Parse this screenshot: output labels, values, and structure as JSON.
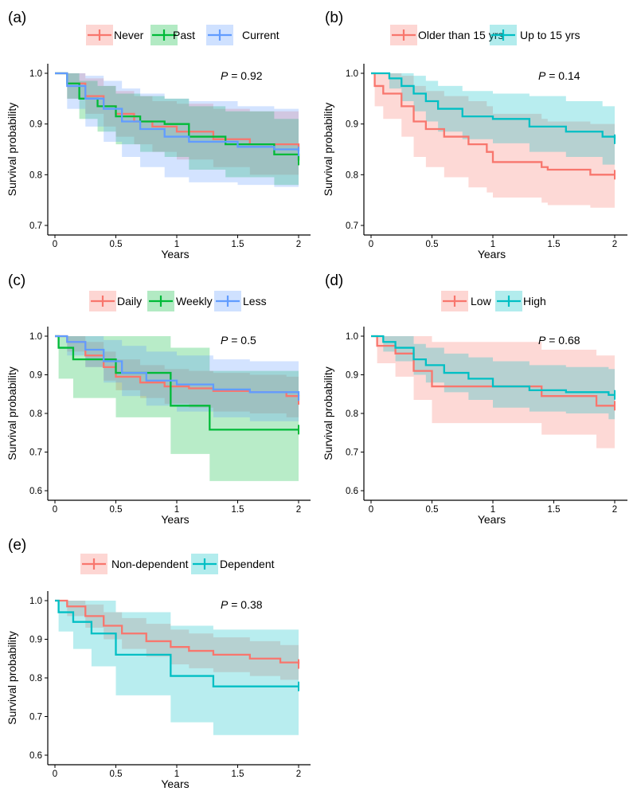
{
  "chart_data": [
    {
      "type": "line",
      "subtype": "kaplan-meier",
      "panel_label": "(a)",
      "xlabel": "Years",
      "ylabel": "Survival probability",
      "xlim": [
        0,
        2
      ],
      "ylim": [
        0.7,
        1.0
      ],
      "xticks": [
        0,
        0.5,
        1,
        1.5,
        2
      ],
      "xtick_labels": [
        "0",
        "0.5",
        "1",
        "1.5",
        "2"
      ],
      "yticks": [
        0.7,
        0.8,
        0.9,
        1.0
      ],
      "ytick_labels": [
        "0.7",
        "0.8",
        "0.9",
        "1.0"
      ],
      "p_label": "P",
      "p_text": " = 0.92",
      "legend_position": "top",
      "series": [
        {
          "name": "Never",
          "color": "#F8766D",
          "x": [
            0,
            0.1,
            0.25,
            0.4,
            0.5,
            0.65,
            0.8,
            1.0,
            1.3,
            1.6,
            2.0
          ],
          "y": [
            1.0,
            0.98,
            0.955,
            0.935,
            0.92,
            0.905,
            0.895,
            0.885,
            0.87,
            0.86,
            0.85
          ],
          "lower": [
            1.0,
            0.95,
            0.92,
            0.895,
            0.875,
            0.86,
            0.845,
            0.83,
            0.815,
            0.8,
            0.79
          ],
          "upper": [
            1.0,
            1.0,
            0.99,
            0.975,
            0.965,
            0.955,
            0.945,
            0.94,
            0.93,
            0.925,
            0.92
          ]
        },
        {
          "name": "Past",
          "color": "#00BA38",
          "x": [
            0,
            0.1,
            0.2,
            0.35,
            0.5,
            0.7,
            0.9,
            1.1,
            1.4,
            1.8,
            2.0
          ],
          "y": [
            1.0,
            0.98,
            0.95,
            0.935,
            0.915,
            0.905,
            0.9,
            0.875,
            0.86,
            0.84,
            0.828
          ],
          "lower": [
            1.0,
            0.95,
            0.91,
            0.885,
            0.86,
            0.845,
            0.835,
            0.81,
            0.795,
            0.78,
            0.775
          ],
          "upper": [
            1.0,
            1.0,
            0.985,
            0.975,
            0.96,
            0.955,
            0.95,
            0.935,
            0.925,
            0.91,
            0.9
          ]
        },
        {
          "name": "Current",
          "color": "#619CFF",
          "x": [
            0,
            0.1,
            0.25,
            0.4,
            0.55,
            0.7,
            0.9,
            1.1,
            1.5,
            1.8,
            2.0
          ],
          "y": [
            1.0,
            0.975,
            0.95,
            0.93,
            0.905,
            0.89,
            0.875,
            0.865,
            0.855,
            0.85,
            0.846
          ],
          "lower": [
            1.0,
            0.93,
            0.895,
            0.865,
            0.835,
            0.815,
            0.795,
            0.785,
            0.78,
            0.776,
            0.775
          ],
          "upper": [
            1.0,
            1.0,
            0.995,
            0.985,
            0.97,
            0.96,
            0.95,
            0.945,
            0.935,
            0.93,
            0.925
          ]
        }
      ]
    },
    {
      "type": "line",
      "subtype": "kaplan-meier",
      "panel_label": "(b)",
      "xlabel": "Years",
      "ylabel": "Survival probability",
      "xlim": [
        0,
        2
      ],
      "ylim": [
        0.7,
        1.0
      ],
      "xticks": [
        0,
        0.5,
        1,
        1.5,
        2
      ],
      "xtick_labels": [
        "0",
        "0.5",
        "1",
        "1.5",
        "2"
      ],
      "yticks": [
        0.7,
        0.8,
        0.9,
        1.0
      ],
      "ytick_labels": [
        "0.7",
        "0.8",
        "0.9",
        "1.0"
      ],
      "p_label": "P",
      "p_text": " = 0.14",
      "legend_position": "top",
      "series": [
        {
          "name": "Older than 15 yrs",
          "color": "#F8766D",
          "x": [
            0,
            0.03,
            0.1,
            0.25,
            0.35,
            0.45,
            0.6,
            0.8,
            0.95,
            1.0,
            1.4,
            1.45,
            1.8,
            2.0
          ],
          "y": [
            1.0,
            0.975,
            0.96,
            0.935,
            0.905,
            0.89,
            0.875,
            0.86,
            0.845,
            0.825,
            0.815,
            0.81,
            0.8,
            0.8
          ],
          "lower": [
            1.0,
            0.935,
            0.91,
            0.875,
            0.835,
            0.815,
            0.795,
            0.775,
            0.765,
            0.755,
            0.745,
            0.74,
            0.735,
            0.732
          ],
          "upper": [
            1.0,
            1.0,
            1.0,
            0.995,
            0.975,
            0.965,
            0.955,
            0.945,
            0.935,
            0.92,
            0.91,
            0.905,
            0.9,
            0.9
          ]
        },
        {
          "name": "Up to 15 yrs",
          "color": "#00BFC4",
          "x": [
            0,
            0.15,
            0.25,
            0.35,
            0.45,
            0.55,
            0.75,
            1.0,
            1.3,
            1.6,
            1.9,
            2.0
          ],
          "y": [
            1.0,
            0.99,
            0.975,
            0.96,
            0.945,
            0.93,
            0.915,
            0.91,
            0.895,
            0.885,
            0.875,
            0.87
          ],
          "lower": [
            1.0,
            0.97,
            0.945,
            0.925,
            0.905,
            0.885,
            0.87,
            0.862,
            0.845,
            0.835,
            0.82,
            0.815
          ],
          "upper": [
            1.0,
            1.0,
            1.0,
            0.995,
            0.985,
            0.975,
            0.965,
            0.96,
            0.955,
            0.945,
            0.935,
            0.93
          ]
        }
      ]
    },
    {
      "type": "line",
      "subtype": "kaplan-meier",
      "panel_label": "(c)",
      "xlabel": "Years",
      "ylabel": "Survival probability",
      "xlim": [
        0,
        2
      ],
      "ylim": [
        0.6,
        1.0
      ],
      "xticks": [
        0,
        0.5,
        1,
        1.5,
        2
      ],
      "xtick_labels": [
        "0",
        "0.5",
        "1",
        "1.5",
        "2"
      ],
      "yticks": [
        0.6,
        0.7,
        0.8,
        0.9,
        1.0
      ],
      "ytick_labels": [
        "0.6",
        "0.7",
        "0.8",
        "0.9",
        "1.0"
      ],
      "p_label": "P",
      "p_text": " = 0.5",
      "legend_position": "top",
      "series": [
        {
          "name": "Daily",
          "color": "#F8766D",
          "x": [
            0,
            0.1,
            0.25,
            0.4,
            0.5,
            0.7,
            0.9,
            1.1,
            1.3,
            1.6,
            1.9,
            2.0
          ],
          "y": [
            1.0,
            0.985,
            0.95,
            0.92,
            0.895,
            0.88,
            0.87,
            0.865,
            0.858,
            0.855,
            0.845,
            0.835
          ],
          "lower": [
            1.0,
            0.96,
            0.92,
            0.885,
            0.86,
            0.84,
            0.825,
            0.815,
            0.805,
            0.8,
            0.79,
            0.78
          ],
          "upper": [
            1.0,
            1.0,
            0.985,
            0.96,
            0.94,
            0.925,
            0.915,
            0.91,
            0.905,
            0.9,
            0.895,
            0.89
          ]
        },
        {
          "name": "Weekly",
          "color": "#00BA38",
          "x": [
            0,
            0.03,
            0.15,
            0.5,
            0.95,
            1.27,
            2.0
          ],
          "y": [
            1.0,
            0.97,
            0.94,
            0.905,
            0.82,
            0.758,
            0.758
          ],
          "lower": [
            1.0,
            0.89,
            0.84,
            0.79,
            0.695,
            0.625,
            0.625
          ],
          "upper": [
            1.0,
            1.0,
            1.0,
            1.0,
            0.97,
            0.91,
            0.91
          ]
        },
        {
          "name": "Less",
          "color": "#619CFF",
          "x": [
            0,
            0.1,
            0.25,
            0.4,
            0.55,
            0.75,
            1.0,
            1.3,
            1.6,
            2.0
          ],
          "y": [
            1.0,
            0.985,
            0.965,
            0.935,
            0.905,
            0.885,
            0.875,
            0.862,
            0.855,
            0.845
          ],
          "lower": [
            1.0,
            0.95,
            0.92,
            0.88,
            0.845,
            0.82,
            0.805,
            0.79,
            0.78,
            0.77
          ],
          "upper": [
            1.0,
            1.0,
            1.0,
            0.99,
            0.975,
            0.96,
            0.95,
            0.94,
            0.935,
            0.93
          ]
        }
      ]
    },
    {
      "type": "line",
      "subtype": "kaplan-meier",
      "panel_label": "(d)",
      "xlabel": "Years",
      "ylabel": "Survival probability",
      "xlim": [
        0,
        2
      ],
      "ylim": [
        0.6,
        1.0
      ],
      "xticks": [
        0,
        0.5,
        1,
        1.5,
        2
      ],
      "xtick_labels": [
        "0",
        "0.5",
        "1",
        "1.5",
        "2"
      ],
      "yticks": [
        0.6,
        0.7,
        0.8,
        0.9,
        1.0
      ],
      "ytick_labels": [
        "0.6",
        "0.7",
        "0.8",
        "0.9",
        "1.0"
      ],
      "p_label": "P",
      "p_text": " = 0.68",
      "legend_position": "top",
      "series": [
        {
          "name": "Low",
          "color": "#F8766D",
          "x": [
            0,
            0.05,
            0.2,
            0.35,
            0.5,
            0.9,
            1.4,
            1.85,
            2.0
          ],
          "y": [
            1.0,
            0.975,
            0.955,
            0.91,
            0.87,
            0.87,
            0.845,
            0.82,
            0.82
          ],
          "lower": [
            1.0,
            0.93,
            0.895,
            0.835,
            0.775,
            0.775,
            0.745,
            0.71,
            0.71
          ],
          "upper": [
            1.0,
            1.0,
            1.0,
            1.0,
            0.985,
            0.985,
            0.965,
            0.95,
            0.95
          ]
        },
        {
          "name": "High",
          "color": "#00BFC4",
          "x": [
            0,
            0.1,
            0.2,
            0.35,
            0.45,
            0.6,
            0.8,
            1.0,
            1.3,
            1.6,
            1.95,
            2.0
          ],
          "y": [
            1.0,
            0.985,
            0.97,
            0.94,
            0.925,
            0.905,
            0.89,
            0.87,
            0.86,
            0.855,
            0.848,
            0.848
          ],
          "lower": [
            1.0,
            0.96,
            0.935,
            0.9,
            0.88,
            0.855,
            0.835,
            0.815,
            0.805,
            0.8,
            0.785,
            0.785
          ],
          "upper": [
            1.0,
            1.0,
            1.0,
            0.98,
            0.97,
            0.955,
            0.945,
            0.935,
            0.925,
            0.92,
            0.915,
            0.915
          ]
        }
      ]
    },
    {
      "type": "line",
      "subtype": "kaplan-meier",
      "panel_label": "(e)",
      "xlabel": "Years",
      "ylabel": "Survival probability",
      "xlim": [
        0,
        2
      ],
      "ylim": [
        0.6,
        1.0
      ],
      "xticks": [
        0,
        0.5,
        1,
        1.5,
        2
      ],
      "xtick_labels": [
        "0",
        "0.5",
        "1",
        "1.5",
        "2"
      ],
      "yticks": [
        0.6,
        0.7,
        0.8,
        0.9,
        1.0
      ],
      "ytick_labels": [
        "0.6",
        "0.7",
        "0.8",
        "0.9",
        "1.0"
      ],
      "p_label": "P",
      "p_text": " = 0.38",
      "legend_position": "top",
      "series": [
        {
          "name": "Non-dependent",
          "color": "#F8766D",
          "x": [
            0,
            0.1,
            0.25,
            0.4,
            0.55,
            0.75,
            0.95,
            1.1,
            1.3,
            1.6,
            1.85,
            2.0
          ],
          "y": [
            1.0,
            0.985,
            0.96,
            0.935,
            0.915,
            0.895,
            0.88,
            0.87,
            0.86,
            0.85,
            0.84,
            0.836
          ],
          "lower": [
            1.0,
            0.96,
            0.93,
            0.9,
            0.875,
            0.855,
            0.835,
            0.825,
            0.815,
            0.805,
            0.795,
            0.79
          ],
          "upper": [
            1.0,
            1.0,
            0.99,
            0.97,
            0.955,
            0.94,
            0.925,
            0.915,
            0.905,
            0.895,
            0.885,
            0.88
          ]
        },
        {
          "name": "Dependent",
          "color": "#00BFC4",
          "x": [
            0,
            0.03,
            0.15,
            0.3,
            0.5,
            0.95,
            1.3,
            2.0
          ],
          "y": [
            1.0,
            0.97,
            0.945,
            0.915,
            0.86,
            0.805,
            0.778,
            0.778
          ],
          "lower": [
            1.0,
            0.92,
            0.875,
            0.83,
            0.755,
            0.685,
            0.652,
            0.652
          ],
          "upper": [
            1.0,
            1.0,
            1.0,
            1.0,
            0.97,
            0.935,
            0.925,
            0.925
          ]
        }
      ]
    }
  ]
}
